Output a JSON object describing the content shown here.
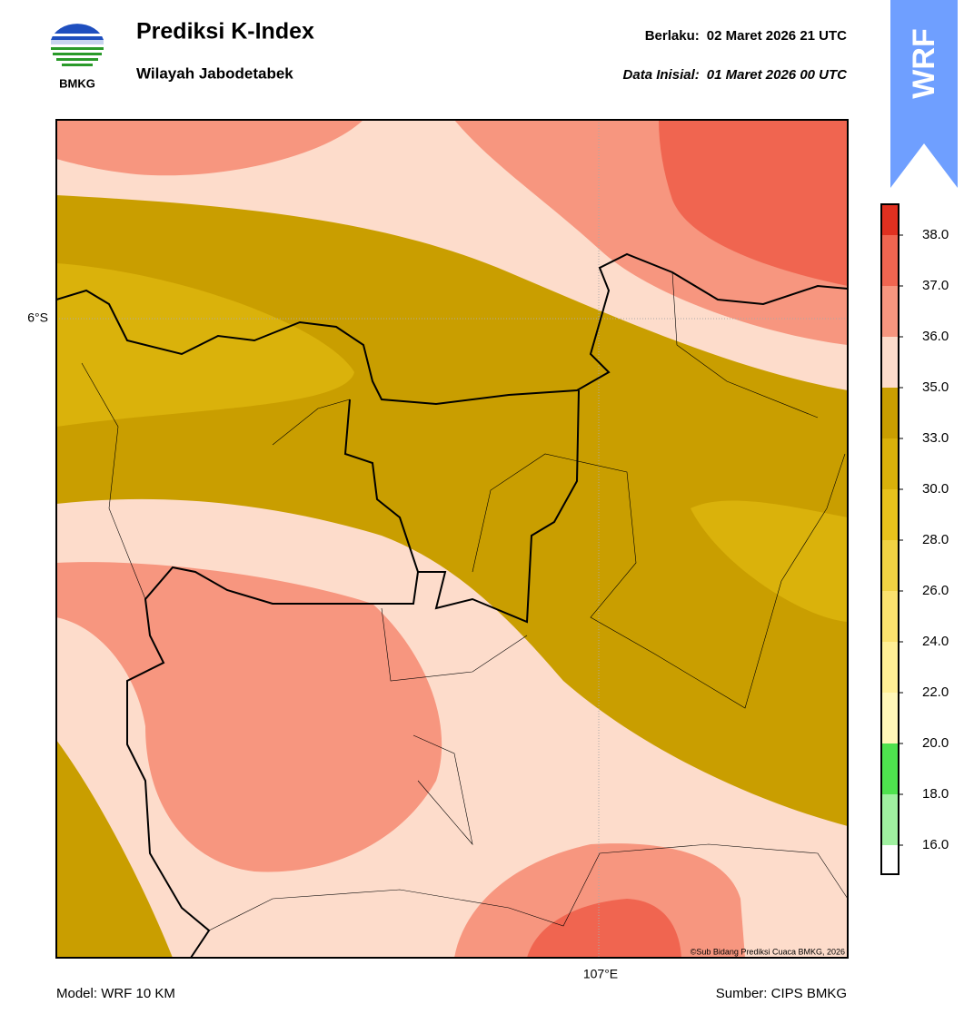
{
  "header": {
    "logo_text": "BMKG",
    "title": "Prediksi K-Index",
    "subtitle": "Wilayah Jabodetabek",
    "valid_label": "Berlaku:",
    "valid_time": "02 Maret 2026 21 UTC",
    "init_label": "Data Inisial:",
    "init_time": "01 Maret 2026 00 UTC",
    "badge": "WRF"
  },
  "map": {
    "lat_label": "6°S",
    "lon_label": "107°E",
    "credit": "©Sub Bidang Prediksi Cuaca BMKG, 2026"
  },
  "colorbar": {
    "ticks": [
      {
        "value": 16,
        "label": "16.0"
      },
      {
        "value": 18,
        "label": "18.0"
      },
      {
        "value": 20,
        "label": "20.0"
      },
      {
        "value": 22,
        "label": "22.0"
      },
      {
        "value": 24,
        "label": "24.0"
      },
      {
        "value": 26,
        "label": "26.0"
      },
      {
        "value": 28,
        "label": "28.0"
      },
      {
        "value": 30,
        "label": "30.0"
      },
      {
        "value": 33,
        "label": "33.0"
      },
      {
        "value": 35,
        "label": "35.0"
      },
      {
        "value": 36,
        "label": "36.0"
      },
      {
        "value": 37,
        "label": "37.0"
      },
      {
        "value": 38,
        "label": "38.0"
      }
    ],
    "colors": [
      "#ffffff",
      "#9ff0a0",
      "#4ee24e",
      "#fff7b8",
      "#ffef95",
      "#fbe26e",
      "#f1d243",
      "#e8c21c",
      "#d9b10a",
      "#c99e00",
      "#fddccb",
      "#f7967f",
      "#f06550",
      "#e03020"
    ]
  },
  "footer": {
    "model": "Model: WRF 10 KM",
    "source": "Sumber: CIPS BMKG"
  }
}
